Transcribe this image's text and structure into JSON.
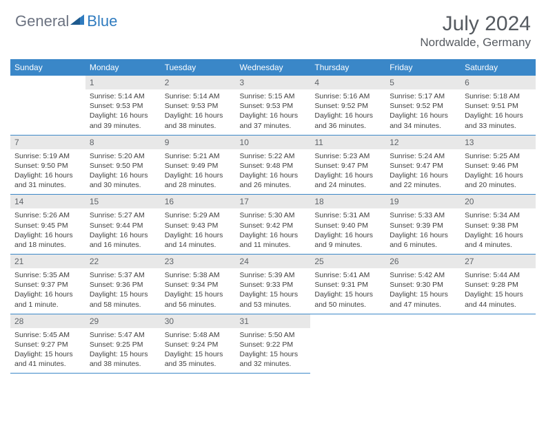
{
  "brand": {
    "part1": "General",
    "part2": "Blue"
  },
  "title": "July 2024",
  "location": "Nordwalde, Germany",
  "colors": {
    "header_bg": "#3a87c8",
    "header_fg": "#ffffff",
    "daynum_bg": "#e8e8e8",
    "daynum_fg": "#5f6368",
    "border": "#3a87c8",
    "text": "#404040",
    "title": "#555a60",
    "logo_gray": "#6b7280",
    "logo_blue": "#2f7bbf"
  },
  "weekdays": [
    "Sunday",
    "Monday",
    "Tuesday",
    "Wednesday",
    "Thursday",
    "Friday",
    "Saturday"
  ],
  "weeks": [
    [
      null,
      {
        "n": "1",
        "sr": "5:14 AM",
        "ss": "9:53 PM",
        "dl": "16 hours and 39 minutes."
      },
      {
        "n": "2",
        "sr": "5:14 AM",
        "ss": "9:53 PM",
        "dl": "16 hours and 38 minutes."
      },
      {
        "n": "3",
        "sr": "5:15 AM",
        "ss": "9:53 PM",
        "dl": "16 hours and 37 minutes."
      },
      {
        "n": "4",
        "sr": "5:16 AM",
        "ss": "9:52 PM",
        "dl": "16 hours and 36 minutes."
      },
      {
        "n": "5",
        "sr": "5:17 AM",
        "ss": "9:52 PM",
        "dl": "16 hours and 34 minutes."
      },
      {
        "n": "6",
        "sr": "5:18 AM",
        "ss": "9:51 PM",
        "dl": "16 hours and 33 minutes."
      }
    ],
    [
      {
        "n": "7",
        "sr": "5:19 AM",
        "ss": "9:50 PM",
        "dl": "16 hours and 31 minutes."
      },
      {
        "n": "8",
        "sr": "5:20 AM",
        "ss": "9:50 PM",
        "dl": "16 hours and 30 minutes."
      },
      {
        "n": "9",
        "sr": "5:21 AM",
        "ss": "9:49 PM",
        "dl": "16 hours and 28 minutes."
      },
      {
        "n": "10",
        "sr": "5:22 AM",
        "ss": "9:48 PM",
        "dl": "16 hours and 26 minutes."
      },
      {
        "n": "11",
        "sr": "5:23 AM",
        "ss": "9:47 PM",
        "dl": "16 hours and 24 minutes."
      },
      {
        "n": "12",
        "sr": "5:24 AM",
        "ss": "9:47 PM",
        "dl": "16 hours and 22 minutes."
      },
      {
        "n": "13",
        "sr": "5:25 AM",
        "ss": "9:46 PM",
        "dl": "16 hours and 20 minutes."
      }
    ],
    [
      {
        "n": "14",
        "sr": "5:26 AM",
        "ss": "9:45 PM",
        "dl": "16 hours and 18 minutes."
      },
      {
        "n": "15",
        "sr": "5:27 AM",
        "ss": "9:44 PM",
        "dl": "16 hours and 16 minutes."
      },
      {
        "n": "16",
        "sr": "5:29 AM",
        "ss": "9:43 PM",
        "dl": "16 hours and 14 minutes."
      },
      {
        "n": "17",
        "sr": "5:30 AM",
        "ss": "9:42 PM",
        "dl": "16 hours and 11 minutes."
      },
      {
        "n": "18",
        "sr": "5:31 AM",
        "ss": "9:40 PM",
        "dl": "16 hours and 9 minutes."
      },
      {
        "n": "19",
        "sr": "5:33 AM",
        "ss": "9:39 PM",
        "dl": "16 hours and 6 minutes."
      },
      {
        "n": "20",
        "sr": "5:34 AM",
        "ss": "9:38 PM",
        "dl": "16 hours and 4 minutes."
      }
    ],
    [
      {
        "n": "21",
        "sr": "5:35 AM",
        "ss": "9:37 PM",
        "dl": "16 hours and 1 minute."
      },
      {
        "n": "22",
        "sr": "5:37 AM",
        "ss": "9:36 PM",
        "dl": "15 hours and 58 minutes."
      },
      {
        "n": "23",
        "sr": "5:38 AM",
        "ss": "9:34 PM",
        "dl": "15 hours and 56 minutes."
      },
      {
        "n": "24",
        "sr": "5:39 AM",
        "ss": "9:33 PM",
        "dl": "15 hours and 53 minutes."
      },
      {
        "n": "25",
        "sr": "5:41 AM",
        "ss": "9:31 PM",
        "dl": "15 hours and 50 minutes."
      },
      {
        "n": "26",
        "sr": "5:42 AM",
        "ss": "9:30 PM",
        "dl": "15 hours and 47 minutes."
      },
      {
        "n": "27",
        "sr": "5:44 AM",
        "ss": "9:28 PM",
        "dl": "15 hours and 44 minutes."
      }
    ],
    [
      {
        "n": "28",
        "sr": "5:45 AM",
        "ss": "9:27 PM",
        "dl": "15 hours and 41 minutes."
      },
      {
        "n": "29",
        "sr": "5:47 AM",
        "ss": "9:25 PM",
        "dl": "15 hours and 38 minutes."
      },
      {
        "n": "30",
        "sr": "5:48 AM",
        "ss": "9:24 PM",
        "dl": "15 hours and 35 minutes."
      },
      {
        "n": "31",
        "sr": "5:50 AM",
        "ss": "9:22 PM",
        "dl": "15 hours and 32 minutes."
      },
      null,
      null,
      null
    ]
  ],
  "labels": {
    "sunrise": "Sunrise: ",
    "sunset": "Sunset: ",
    "daylight": "Daylight: "
  }
}
